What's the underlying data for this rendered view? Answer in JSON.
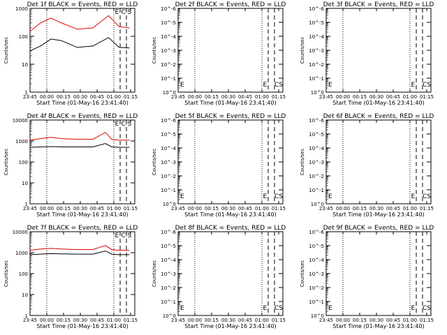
{
  "chart_data": [
    {
      "type": "line",
      "title": "Det 1f BLACK = Events, RED = LLD",
      "xlabel": "Start Time (01-May-16 23:41:40)",
      "ylabel": "Counts/sec",
      "x_ticks": [
        "23:45",
        "00:00",
        "00:15",
        "00:30",
        "00:45",
        "01:00",
        "01:15"
      ],
      "y_scale": "log",
      "ylim": [
        1,
        1000
      ],
      "y_ticks": [
        "1",
        "10",
        "100",
        "1000"
      ],
      "markers": [
        "E",
        "C",
        "S"
      ],
      "series": [
        {
          "color": "#e00000",
          "x": [
            0,
            10,
            20,
            30,
            45,
            60,
            75,
            85,
            95
          ],
          "y": [
            150,
            300,
            450,
            300,
            180,
            200,
            550,
            220,
            200
          ]
        },
        {
          "color": "#000000",
          "x": [
            0,
            10,
            20,
            30,
            45,
            60,
            75,
            85,
            95
          ],
          "y": [
            30,
            45,
            80,
            70,
            40,
            45,
            90,
            40,
            38
          ]
        }
      ]
    },
    {
      "type": "line",
      "title": "Det 2f BLACK = Events, RED = LLD",
      "xlabel": "Start Time (01-May-16 23:41:40)",
      "ylabel": "Counts/sec",
      "x_ticks": [
        "23:45",
        "00:00",
        "00:15",
        "00:30",
        "00:45",
        "01:00",
        "01:15"
      ],
      "y_scale": "log",
      "ylim": [
        1,
        1000000
      ],
      "y_ticks": [
        "10^0",
        "10^-1",
        "10^-2",
        "10^-3",
        "10^-4",
        "10^-5",
        "10^-6"
      ],
      "markers": [
        "E",
        "E",
        "CS"
      ],
      "series": []
    },
    {
      "type": "line",
      "title": "Det 3f BLACK = Events, RED = LLD",
      "xlabel": "Start Time (01-May-16 23:41:40)",
      "ylabel": "Counts/sec",
      "x_ticks": [
        "23:45",
        "00:00",
        "00:15",
        "00:30",
        "00:45",
        "01:00",
        "01:15"
      ],
      "y_scale": "log",
      "ylim": [
        1,
        1000000
      ],
      "y_ticks": [
        "10^0",
        "10^-1",
        "10^-2",
        "10^-3",
        "10^-4",
        "10^-5",
        "10^-6"
      ],
      "markers": [
        "E",
        "E",
        "CS"
      ],
      "series": []
    },
    {
      "type": "line",
      "title": "Det 4f BLACK = Events, RED = LLD",
      "xlabel": "Start Time (01-May-16 23:41:40)",
      "ylabel": "Counts/sec",
      "x_ticks": [
        "23:45",
        "00:00",
        "00:15",
        "00:30",
        "00:45",
        "01:00",
        "01:15"
      ],
      "y_scale": "log",
      "ylim": [
        1,
        10000
      ],
      "y_ticks": [
        "1",
        "10",
        "100",
        "1000",
        "10000"
      ],
      "markers": [
        "E",
        "C",
        "S"
      ],
      "series": [
        {
          "color": "#e00000",
          "x": [
            0,
            10,
            20,
            30,
            45,
            60,
            72,
            78,
            85,
            95
          ],
          "y": [
            1100,
            1300,
            1500,
            1300,
            1200,
            1200,
            2600,
            1200,
            1100,
            1100
          ]
        },
        {
          "color": "#000000",
          "x": [
            0,
            10,
            20,
            30,
            45,
            60,
            72,
            78,
            85,
            95
          ],
          "y": [
            500,
            520,
            540,
            520,
            520,
            520,
            750,
            520,
            500,
            500
          ]
        }
      ]
    },
    {
      "type": "line",
      "title": "Det 5f BLACK = Events, RED = LLD",
      "xlabel": "Start Time (01-May-16 23:41:40)",
      "ylabel": "Counts/sec",
      "x_ticks": [
        "23:45",
        "00:00",
        "00:15",
        "00:30",
        "00:45",
        "01:00",
        "01:15"
      ],
      "y_scale": "log",
      "ylim": [
        1,
        1000000
      ],
      "y_ticks": [
        "10^0",
        "10^-1",
        "10^-2",
        "10^-3",
        "10^-4",
        "10^-5",
        "10^-6"
      ],
      "markers": [
        "E",
        "E",
        "CS"
      ],
      "series": []
    },
    {
      "type": "line",
      "title": "Det 6f BLACK = Events, RED = LLD",
      "xlabel": "Start Time (01-May-16 23:41:40)",
      "ylabel": "Counts/sec",
      "x_ticks": [
        "23:45",
        "00:00",
        "00:15",
        "00:30",
        "00:45",
        "01:00",
        "01:15"
      ],
      "y_scale": "log",
      "ylim": [
        1,
        1000000
      ],
      "y_ticks": [
        "10^0",
        "10^-1",
        "10^-2",
        "10^-3",
        "10^-4",
        "10^-5",
        "10^-6"
      ],
      "markers": [
        "E",
        "E",
        "CS"
      ],
      "series": []
    },
    {
      "type": "line",
      "title": "Det 7f BLACK = Events, RED = LLD",
      "xlabel": "Start Time (01-May-16 23:41:40)",
      "ylabel": "Counts/sec",
      "x_ticks": [
        "23:45",
        "00:00",
        "00:15",
        "00:30",
        "00:45",
        "01:00",
        "01:15"
      ],
      "y_scale": "log",
      "ylim": [
        1,
        10000
      ],
      "y_ticks": [
        "1",
        "10",
        "100",
        "1000",
        "10000"
      ],
      "markers": [
        "E",
        "C",
        "S"
      ],
      "series": [
        {
          "color": "#e00000",
          "x": [
            0,
            10,
            20,
            30,
            45,
            60,
            72,
            78,
            85,
            95
          ],
          "y": [
            1300,
            1500,
            1600,
            1500,
            1400,
            1400,
            2200,
            1400,
            1300,
            1300
          ]
        },
        {
          "color": "#000000",
          "x": [
            0,
            10,
            20,
            30,
            45,
            60,
            72,
            78,
            85,
            95
          ],
          "y": [
            800,
            850,
            900,
            870,
            850,
            850,
            1200,
            850,
            800,
            800
          ]
        }
      ]
    },
    {
      "type": "line",
      "title": "Det 8f BLACK = Events, RED = LLD",
      "xlabel": "Start Time (01-May-16 23:41:40)",
      "ylabel": "Counts/sec",
      "x_ticks": [
        "23:45",
        "00:00",
        "00:15",
        "00:30",
        "00:45",
        "01:00",
        "01:15"
      ],
      "y_scale": "log",
      "ylim": [
        1,
        1000000
      ],
      "y_ticks": [
        "10^0",
        "10^-1",
        "10^-2",
        "10^-3",
        "10^-4",
        "10^-5",
        "10^-6"
      ],
      "markers": [
        "E",
        "E",
        "CS"
      ],
      "series": []
    },
    {
      "type": "line",
      "title": "Det 9f BLACK = Events, RED = LLD",
      "xlabel": "Start Time (01-May-16 23:41:40)",
      "ylabel": "Counts/sec",
      "x_ticks": [
        "23:45",
        "00:00",
        "00:15",
        "00:30",
        "00:45",
        "01:00",
        "01:15"
      ],
      "y_scale": "log",
      "ylim": [
        1,
        1000000
      ],
      "y_ticks": [
        "10^0",
        "10^-1",
        "10^-2",
        "10^-3",
        "10^-4",
        "10^-5",
        "10^-6"
      ],
      "markers": [
        "E",
        "E",
        "CS"
      ],
      "series": []
    }
  ]
}
